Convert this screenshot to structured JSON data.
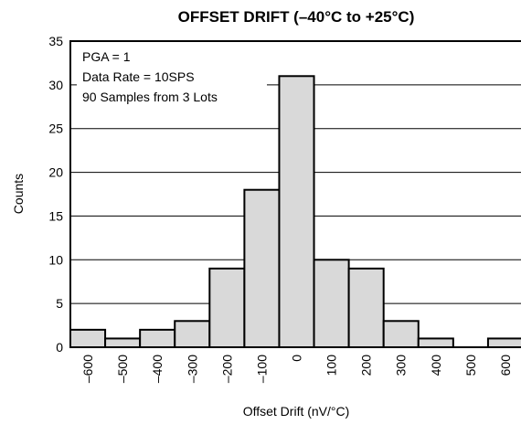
{
  "chart_data": {
    "type": "bar",
    "title": "OFFSET DRIFT (–40°C to +25°C)",
    "xlabel": "Offset Drift (nV/°C)",
    "ylabel": "Counts",
    "categories": [
      "–600",
      "–500",
      "–400",
      "–300",
      "–200",
      "–100",
      "0",
      "100",
      "200",
      "300",
      "400",
      "500",
      "600"
    ],
    "values": [
      2,
      1,
      2,
      3,
      9,
      18,
      31,
      10,
      9,
      3,
      1,
      0,
      1
    ],
    "ylim": [
      0,
      35
    ],
    "yticks": [
      "0",
      "5",
      "10",
      "15",
      "20",
      "25",
      "30",
      "35"
    ],
    "grid": true,
    "bar_color": "#d9d9d9",
    "annotations": [
      "PGA = 1",
      "Data Rate = 10SPS",
      "90 Samples from 3 Lots"
    ]
  }
}
